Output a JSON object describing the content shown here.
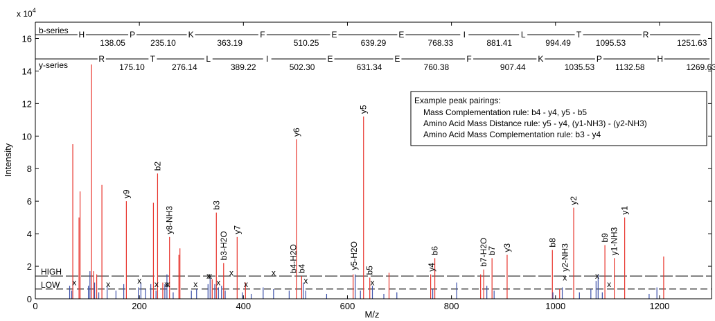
{
  "chart_data": {
    "type": "bar",
    "title": "",
    "xlabel": "M/z",
    "ylabel": "Intensity",
    "y_exponent_label": "x 10",
    "y_exponent_power": "4",
    "xlim": [
      0,
      1300
    ],
    "ylim": [
      0,
      17
    ],
    "x_ticks": [
      0,
      200,
      400,
      600,
      800,
      1000,
      1200
    ],
    "y_ticks": [
      0,
      2,
      4,
      6,
      8,
      10,
      12,
      14,
      16
    ],
    "grid": false,
    "legend_placement": "top-right",
    "legend_lines": [
      "Example peak pairings:",
      "Mass Complementation rule: b4 - y4, y5 - b5",
      "Amino Acid Mass Distance rule: y5 - y4, (y1-NH3) - (y2-NH3)",
      "Amino Acid Mass Complementation rule: b3 - y4"
    ],
    "threshold_lines": [
      {
        "name": "HIGH",
        "y": 1.4
      },
      {
        "name": "LOW",
        "y": 0.6
      }
    ],
    "series": [
      {
        "name": "red peaks",
        "color": "#e8332b",
        "points": [
          [
            72,
            9.5
          ],
          [
            84,
            5.0
          ],
          [
            86,
            6.6
          ],
          [
            108,
            14.4
          ],
          [
            112,
            1.7
          ],
          [
            118,
            1.5
          ],
          [
            128,
            7.0
          ],
          [
            175,
            6.0
          ],
          [
            227,
            5.9
          ],
          [
            235,
            7.7
          ],
          [
            245,
            1.0
          ],
          [
            258,
            3.8
          ],
          [
            276,
            2.7
          ],
          [
            278,
            3.1
          ],
          [
            340,
            1.2
          ],
          [
            348,
            5.3
          ],
          [
            362,
            2.2
          ],
          [
            388,
            3.8
          ],
          [
            404,
            1.0
          ],
          [
            502,
            9.8
          ],
          [
            512,
            1.4
          ],
          [
            611,
            1.5
          ],
          [
            631,
            11.2
          ],
          [
            643,
            1.3
          ],
          [
            680,
            1.6
          ],
          [
            760,
            1.5
          ],
          [
            768,
            2.5
          ],
          [
            856,
            1.5
          ],
          [
            862,
            1.8
          ],
          [
            878,
            2.5
          ],
          [
            907,
            2.7
          ],
          [
            994,
            3.0
          ],
          [
            1008,
            0.6
          ],
          [
            1035,
            5.6
          ],
          [
            1095,
            3.3
          ],
          [
            1113,
            2.5
          ],
          [
            1133,
            5.0
          ],
          [
            1208,
            2.6
          ]
        ]
      },
      {
        "name": "blue peaks",
        "color": "#3a4fa8",
        "points": [
          [
            66,
            0.8
          ],
          [
            70,
            0.5
          ],
          [
            102,
            0.8
          ],
          [
            105,
            1.7
          ],
          [
            114,
            1.0
          ],
          [
            122,
            0.4
          ],
          [
            138,
            0.8
          ],
          [
            155,
            0.5
          ],
          [
            170,
            0.9
          ],
          [
            198,
            0.7
          ],
          [
            203,
            1.0
          ],
          [
            212,
            0.6
          ],
          [
            222,
            0.9
          ],
          [
            232,
            0.5
          ],
          [
            249,
            0.9
          ],
          [
            253,
            1.5
          ],
          [
            265,
            0.4
          ],
          [
            300,
            0.5
          ],
          [
            310,
            0.6
          ],
          [
            332,
            0.9
          ],
          [
            336,
            1.3
          ],
          [
            345,
            0.9
          ],
          [
            352,
            0.7
          ],
          [
            358,
            0.8
          ],
          [
            365,
            0.5
          ],
          [
            398,
            0.4
          ],
          [
            415,
            0.3
          ],
          [
            438,
            0.7
          ],
          [
            458,
            0.6
          ],
          [
            488,
            0.5
          ],
          [
            515,
            1.0
          ],
          [
            520,
            0.5
          ],
          [
            560,
            0.3
          ],
          [
            615,
            1.5
          ],
          [
            625,
            0.5
          ],
          [
            648,
            0.8
          ],
          [
            670,
            0.3
          ],
          [
            695,
            0.4
          ],
          [
            764,
            0.6
          ],
          [
            810,
            1.0
          ],
          [
            868,
            0.8
          ],
          [
            882,
            0.5
          ],
          [
            995,
            0.4
          ],
          [
            1013,
            0.7
          ],
          [
            1046,
            0.4
          ],
          [
            1068,
            0.6
          ],
          [
            1078,
            1.1
          ],
          [
            1082,
            1.5
          ],
          [
            1090,
            0.4
          ],
          [
            1180,
            0.3
          ],
          [
            1195,
            0.7
          ]
        ]
      }
    ],
    "peak_labels": [
      {
        "text": "y9",
        "x": 175,
        "y": 6.0
      },
      {
        "text": "b2",
        "x": 235,
        "y": 7.7
      },
      {
        "text": "y8-NH3",
        "x": 258,
        "y": 3.8
      },
      {
        "text": "b3",
        "x": 348,
        "y": 5.3
      },
      {
        "text": "b3-H2O",
        "x": 362,
        "y": 2.2
      },
      {
        "text": "y7",
        "x": 388,
        "y": 3.8
      },
      {
        "text": "y6",
        "x": 502,
        "y": 9.8
      },
      {
        "text": "b4-H2O",
        "x": 496,
        "y": 1.4
      },
      {
        "text": "b4",
        "x": 512,
        "y": 1.4
      },
      {
        "text": "y5-H2O",
        "x": 613,
        "y": 1.6
      },
      {
        "text": "b5",
        "x": 643,
        "y": 1.3
      },
      {
        "text": "y5",
        "x": 631,
        "y": 11.2
      },
      {
        "text": "y4",
        "x": 762,
        "y": 1.5
      },
      {
        "text": "b6",
        "x": 768,
        "y": 2.5
      },
      {
        "text": "b7-H2O",
        "x": 862,
        "y": 1.8
      },
      {
        "text": "b7",
        "x": 878,
        "y": 2.5
      },
      {
        "text": "y3",
        "x": 907,
        "y": 2.7
      },
      {
        "text": "b8",
        "x": 994,
        "y": 3.0
      },
      {
        "text": "y2-NH3",
        "x": 1018,
        "y": 1.5
      },
      {
        "text": "y2",
        "x": 1035,
        "y": 5.6
      },
      {
        "text": "b9",
        "x": 1095,
        "y": 3.3
      },
      {
        "text": "y1-NH3",
        "x": 1113,
        "y": 2.5
      },
      {
        "text": "y1",
        "x": 1133,
        "y": 5.0
      }
    ],
    "x_markers": [
      [
        75,
        1.0
      ],
      [
        140,
        0.9
      ],
      [
        200,
        1.1
      ],
      [
        233,
        0.9
      ],
      [
        252,
        0.9
      ],
      [
        255,
        0.9
      ],
      [
        308,
        0.9
      ],
      [
        333,
        1.4
      ],
      [
        336,
        1.4
      ],
      [
        352,
        1.0
      ],
      [
        377,
        1.6
      ],
      [
        405,
        0.9
      ],
      [
        458,
        1.6
      ],
      [
        520,
        1.1
      ],
      [
        648,
        1.0
      ],
      [
        1018,
        1.3
      ],
      [
        1080,
        1.4
      ],
      [
        1103,
        0.9
      ]
    ],
    "b_series": {
      "label": "b-series",
      "residues": [
        {
          "aa": "H",
          "mass": "138.05"
        },
        {
          "aa": "P",
          "mass": "235.10"
        },
        {
          "aa": "K",
          "mass": "363.19"
        },
        {
          "aa": "F",
          "mass": "510.25"
        },
        {
          "aa": "E",
          "mass": "639.29"
        },
        {
          "aa": "E",
          "mass": "768.33"
        },
        {
          "aa": "I",
          "mass": "881.41"
        },
        {
          "aa": "L",
          "mass": "994.49"
        },
        {
          "aa": "T",
          "mass": "1095.53"
        },
        {
          "aa": "R",
          "mass": "1251.63"
        }
      ]
    },
    "y_series": {
      "label": "y-series",
      "residues": [
        {
          "aa": "R",
          "mass": "175.10"
        },
        {
          "aa": "T",
          "mass": "276.14"
        },
        {
          "aa": "L",
          "mass": "389.22"
        },
        {
          "aa": "I",
          "mass": "502.30"
        },
        {
          "aa": "E",
          "mass": "631.34"
        },
        {
          "aa": "E",
          "mass": "760.38"
        },
        {
          "aa": "F",
          "mass": "907.44"
        },
        {
          "aa": "K",
          "mass": "1035.53"
        },
        {
          "aa": "P",
          "mass": "1132.58"
        },
        {
          "aa": "H",
          "mass": "1269.63"
        }
      ]
    }
  }
}
